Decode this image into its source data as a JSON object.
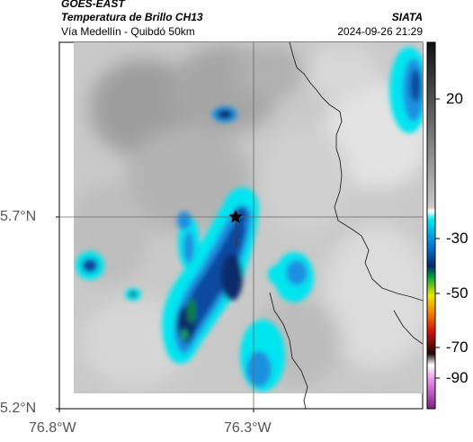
{
  "header": {
    "satellite": "GOES-EAST",
    "product": "Temperatura de Brillo CH13",
    "route": "Vía Medellín - Quibdó 50km",
    "org": "SIATA",
    "datetime": "2024-09-26 21:29"
  },
  "axes": {
    "lat_ticks": [
      "5.7°N",
      "5.2°N"
    ],
    "lon_ticks": [
      "76.8°W",
      "76.3°W"
    ]
  },
  "colorbar": {
    "ticks": [
      "20",
      "-30",
      "-50",
      "-70",
      "-90"
    ],
    "palette": {
      "warm_top": "#111111",
      "gray": "#9a9a9a",
      "cyan": "#00e5f0",
      "blue": "#0060c0",
      "navy": "#082a6a",
      "green": "#00a040",
      "yellow": "#e8e800",
      "orange": "#f08000",
      "red": "#d01010",
      "dark": "#200808",
      "magenta": "#c040c0"
    }
  },
  "map": {
    "marker": "star-icon"
  }
}
